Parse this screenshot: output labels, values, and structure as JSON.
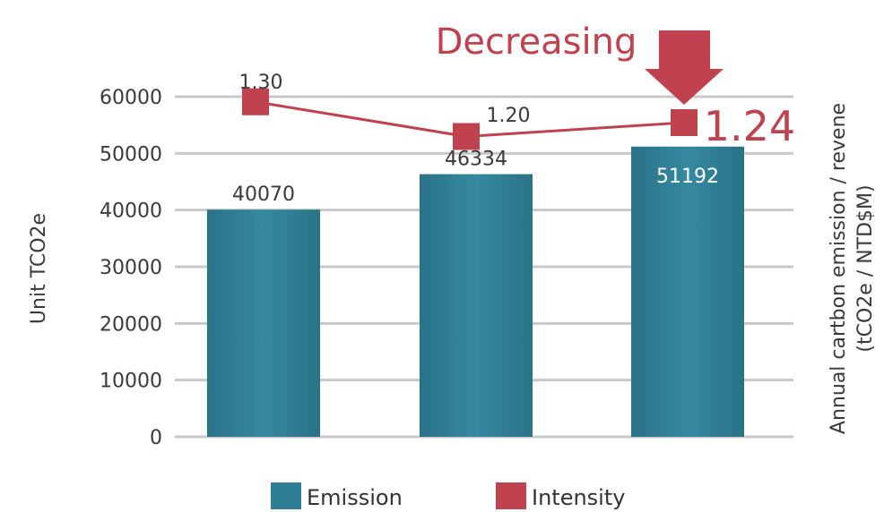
{
  "chart_data": {
    "type": "bar",
    "categories": [
      "",
      "",
      ""
    ],
    "series": [
      {
        "name": "Emission",
        "type": "bar",
        "axis": "left",
        "values": [
          40070,
          46334,
          51192
        ],
        "color": "#2e7f95"
      },
      {
        "name": "Intensity",
        "type": "line",
        "axis": "right",
        "values": [
          1.3,
          1.2,
          1.24
        ],
        "labels": [
          "1.30",
          "1.20",
          "1.24"
        ],
        "color": "#c0424e"
      }
    ],
    "ylabel": "Unit TCO2e",
    "ylabel_right": [
      "Annual cartbon emission / revene",
      "(tCO2e / NTD$M)"
    ],
    "ylim": [
      0,
      60000
    ],
    "yticks": [
      "0",
      "10000",
      "20000",
      "30000",
      "40000",
      "50000",
      "60000"
    ],
    "bar_labels": [
      "40070",
      "46334",
      "51192"
    ],
    "annotation": "Decreasing",
    "grid": true,
    "legend_position": "bottom"
  }
}
